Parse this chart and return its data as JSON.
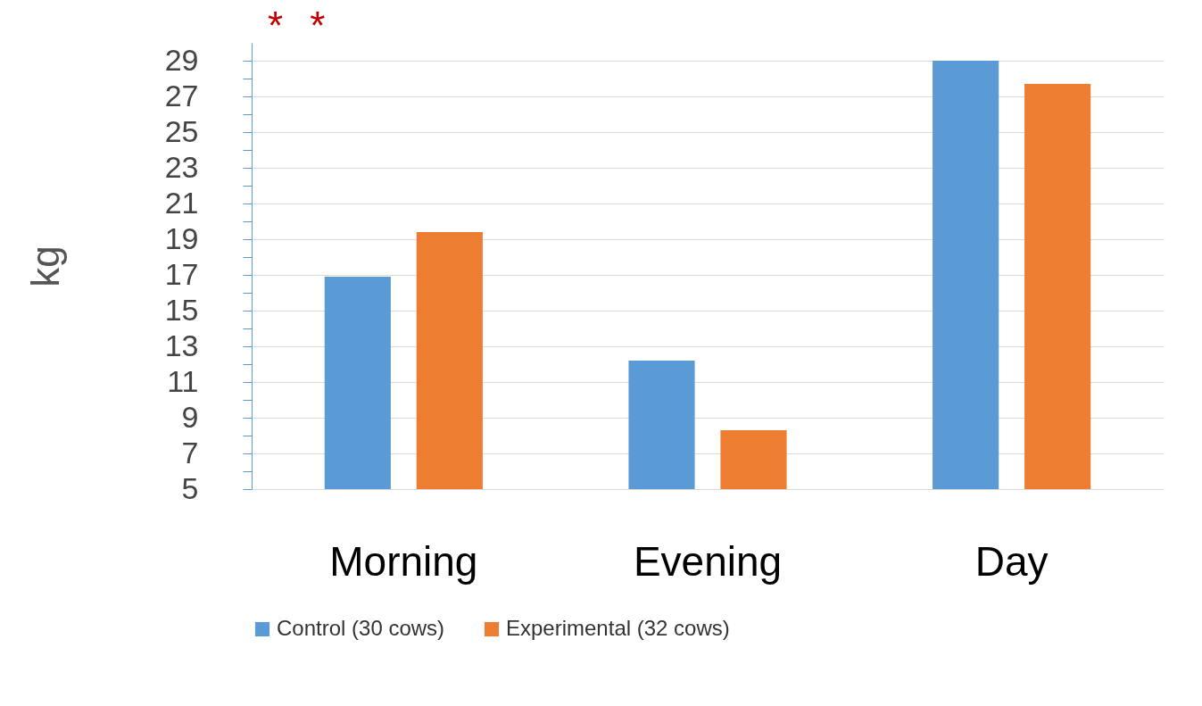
{
  "chart_data": {
    "type": "bar",
    "ylabel": "kg",
    "categories": [
      "Morning",
      "Evening",
      "Day"
    ],
    "series": [
      {
        "name": "Control (30 cows)",
        "color": "#5b9bd5",
        "values": [
          16.9,
          12.2,
          29.0
        ]
      },
      {
        "name": "Experimental (32 cows)",
        "color": "#ed7d31",
        "values": [
          19.4,
          8.3,
          27.7
        ]
      }
    ],
    "ylim": [
      5,
      30
    ],
    "yticks": [
      5,
      {
        "value": 6,
        "label": null
      },
      7,
      {
        "value": 8,
        "label": null
      },
      9,
      {
        "value": 10,
        "label": null
      },
      11,
      {
        "value": 12,
        "label": null
      },
      13,
      {
        "value": 14,
        "label": null
      },
      15,
      {
        "value": 16,
        "label": null
      },
      17,
      {
        "value": 18,
        "label": null
      },
      19,
      {
        "value": 20,
        "label": null
      },
      21,
      {
        "value": 22,
        "label": null
      },
      23,
      {
        "value": 24,
        "label": null
      },
      25,
      {
        "value": 26,
        "label": null
      },
      27,
      {
        "value": 28,
        "label": null
      },
      29
    ],
    "grid": "y",
    "legend": "bottom",
    "annotations": [
      "*",
      "*"
    ]
  }
}
